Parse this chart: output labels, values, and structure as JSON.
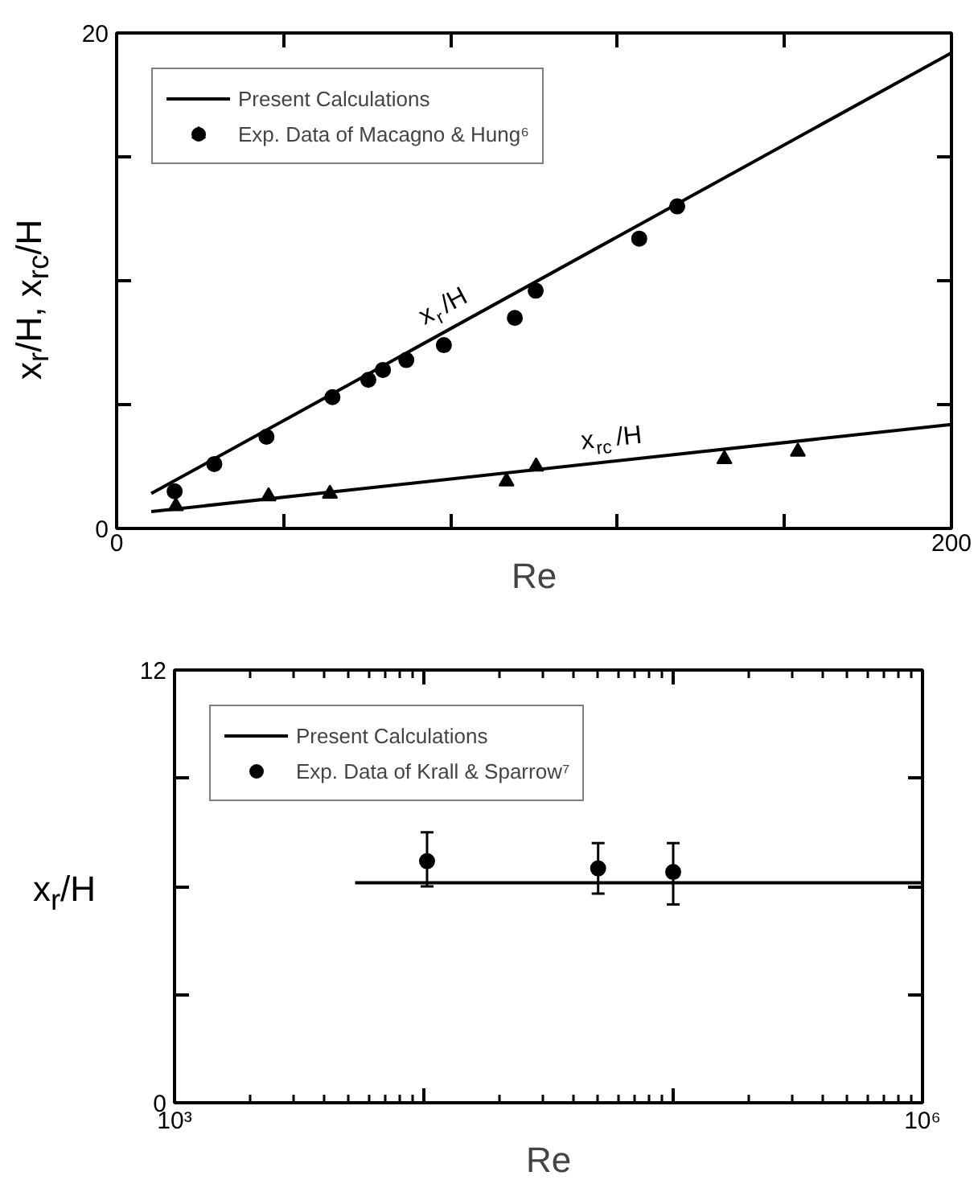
{
  "chart_data": [
    {
      "type": "line",
      "xlabel": "Re",
      "ylabel": "x$_{r}$/H, x$_{rc}$/H",
      "xlim": [
        0,
        200
      ],
      "ylim": [
        0,
        20
      ],
      "xticks": [
        0,
        {
          "value": 40,
          "label": null
        },
        {
          "value": 80,
          "label": null
        },
        {
          "value": 120,
          "label": null
        },
        {
          "value": 160,
          "label": null
        },
        200
      ],
      "yticks": [
        0,
        {
          "value": 5,
          "label": null
        },
        {
          "value": 10,
          "label": null
        },
        {
          "value": 15,
          "label": null
        },
        20
      ],
      "grid": false,
      "legend": "top left",
      "annotations": [
        "x$_{r}$/H",
        "x$_{rc}$/H"
      ],
      "series": [
        {
          "name": "Present Calculations",
          "color": "#000000",
          "marker": "none",
          "line_style": "solid",
          "x": [
            8.3,
            200
          ],
          "values": [
            1.41,
            19.2
          ]
        },
        {
          "color": "#000000",
          "marker": "none",
          "line_style": "solid",
          "x": [
            8.3,
            200
          ],
          "values": [
            0.68,
            4.2
          ]
        },
        {
          "name": "Exp. Data of Macagno & Hung⁶",
          "type": "scatter",
          "color": "#000000",
          "marker": "circle",
          "x": [
            13.9,
            23.4,
            35.9,
            51.7,
            60.3,
            63.8,
            69.4,
            78.4,
            95.4,
            100.4,
            125.2,
            134.3
          ],
          "values": [
            1.5,
            2.6,
            3.7,
            5.3,
            6.0,
            6.4,
            6.8,
            7.4,
            8.5,
            9.6,
            11.7,
            13.0
          ]
        },
        {
          "type": "scatter",
          "color": "#000000",
          "marker": "triangle",
          "x": [
            14.2,
            36.4,
            51.1,
            93.4,
            100.5,
            145.6,
            163.2
          ],
          "values": [
            0.9,
            1.3,
            1.4,
            1.9,
            2.5,
            2.8,
            3.1
          ]
        }
      ]
    },
    {
      "type": "line",
      "xlabel": "Re",
      "ylabel": "x$_{r}$/H",
      "log": "x",
      "xlim": [
        1000,
        1000000
      ],
      "ylim": [
        0,
        12
      ],
      "xticks": [
        {
          "value": 1000,
          "label": "10³"
        },
        {
          "value": 10000,
          "label": null
        },
        {
          "value": 100000,
          "label": null
        },
        {
          "value": 1000000,
          "label": "10⁶"
        }
      ],
      "yticks": [
        0,
        {
          "value": 3,
          "label": null
        },
        {
          "value": 6,
          "label": null
        },
        {
          "value": 9,
          "label": null
        },
        12
      ],
      "grid": false,
      "legend": "top left",
      "series": [
        {
          "name": "Present Calculations",
          "color": "#000000",
          "marker": "none",
          "line_style": "solid",
          "x": [
            5300,
            1000000
          ],
          "values": [
            6.1,
            6.1
          ]
        },
        {
          "name": "Exp. Data of Krall & Sparrow⁷",
          "type": "scatter",
          "color": "#000000",
          "marker": "circle",
          "x": [
            10300,
            50000,
            100000
          ],
          "values": [
            6.7,
            6.5,
            6.4
          ],
          "errors": [
            [
              6.0,
              7.5
            ],
            [
              5.8,
              7.2
            ],
            [
              5.5,
              7.2
            ]
          ]
        }
      ]
    }
  ]
}
